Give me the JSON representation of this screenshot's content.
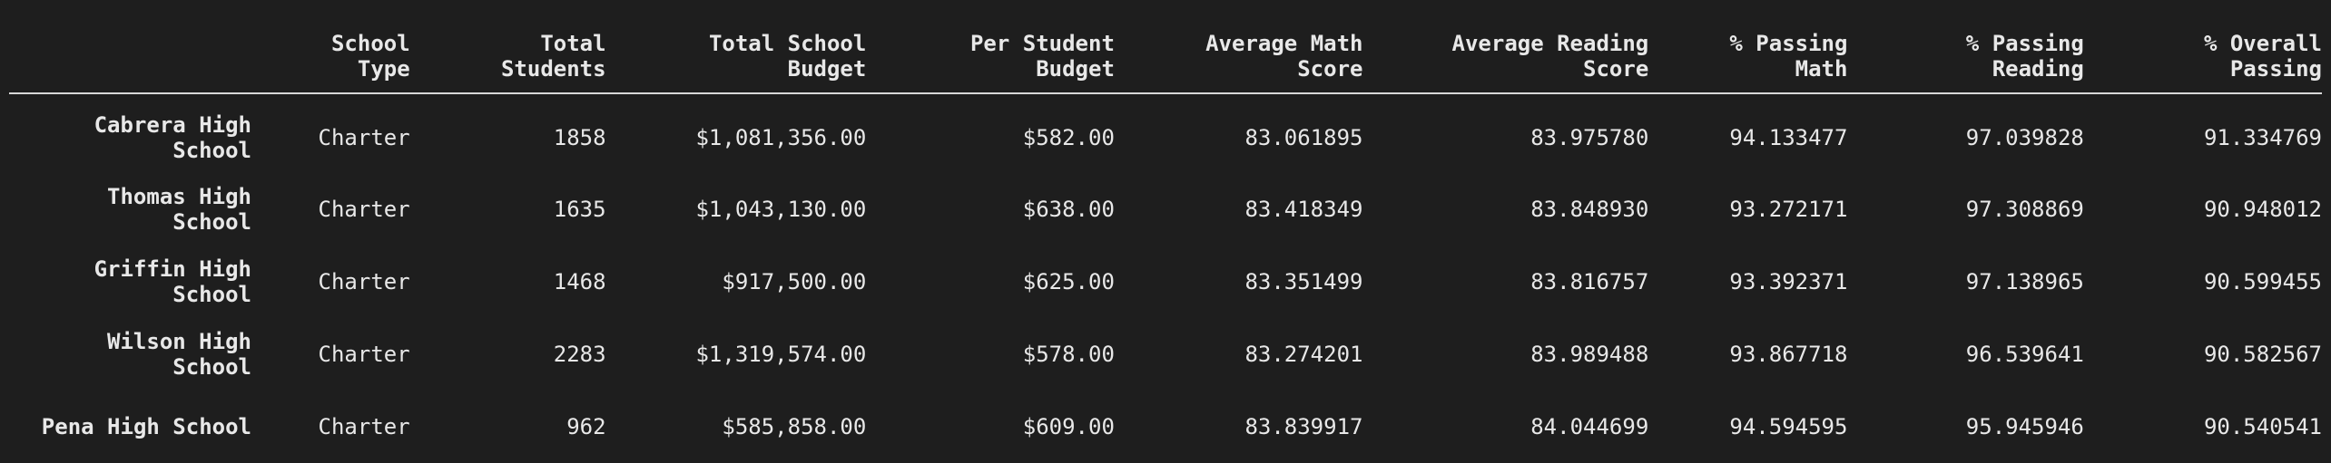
{
  "table": {
    "columns": [
      "",
      "School\nType",
      "Total\nStudents",
      "Total School\nBudget",
      "Per Student\nBudget",
      "Average Math\nScore",
      "Average Reading\nScore",
      "% Passing\nMath",
      "% Passing\nReading",
      "% Overall\nPassing"
    ],
    "rows": [
      {
        "name": "Cabrera High\nSchool",
        "type": "Charter",
        "students": "1858",
        "budget": "$1,081,356.00",
        "per_student": "$582.00",
        "math": "83.061895",
        "reading": "83.975780",
        "pass_math": "94.133477",
        "pass_reading": "97.039828",
        "overall": "91.334769"
      },
      {
        "name": "Thomas High\nSchool",
        "type": "Charter",
        "students": "1635",
        "budget": "$1,043,130.00",
        "per_student": "$638.00",
        "math": "83.418349",
        "reading": "83.848930",
        "pass_math": "93.272171",
        "pass_reading": "97.308869",
        "overall": "90.948012"
      },
      {
        "name": "Griffin High\nSchool",
        "type": "Charter",
        "students": "1468",
        "budget": "$917,500.00",
        "per_student": "$625.00",
        "math": "83.351499",
        "reading": "83.816757",
        "pass_math": "93.392371",
        "pass_reading": "97.138965",
        "overall": "90.599455"
      },
      {
        "name": "Wilson High\nSchool",
        "type": "Charter",
        "students": "2283",
        "budget": "$1,319,574.00",
        "per_student": "$578.00",
        "math": "83.274201",
        "reading": "83.989488",
        "pass_math": "93.867718",
        "pass_reading": "96.539641",
        "overall": "90.582567"
      },
      {
        "name": "Pena High School",
        "type": "Charter",
        "students": "962",
        "budget": "$585,858.00",
        "per_student": "$609.00",
        "math": "83.839917",
        "reading": "84.044699",
        "pass_math": "94.594595",
        "pass_reading": "95.945946",
        "overall": "90.540541"
      }
    ]
  }
}
